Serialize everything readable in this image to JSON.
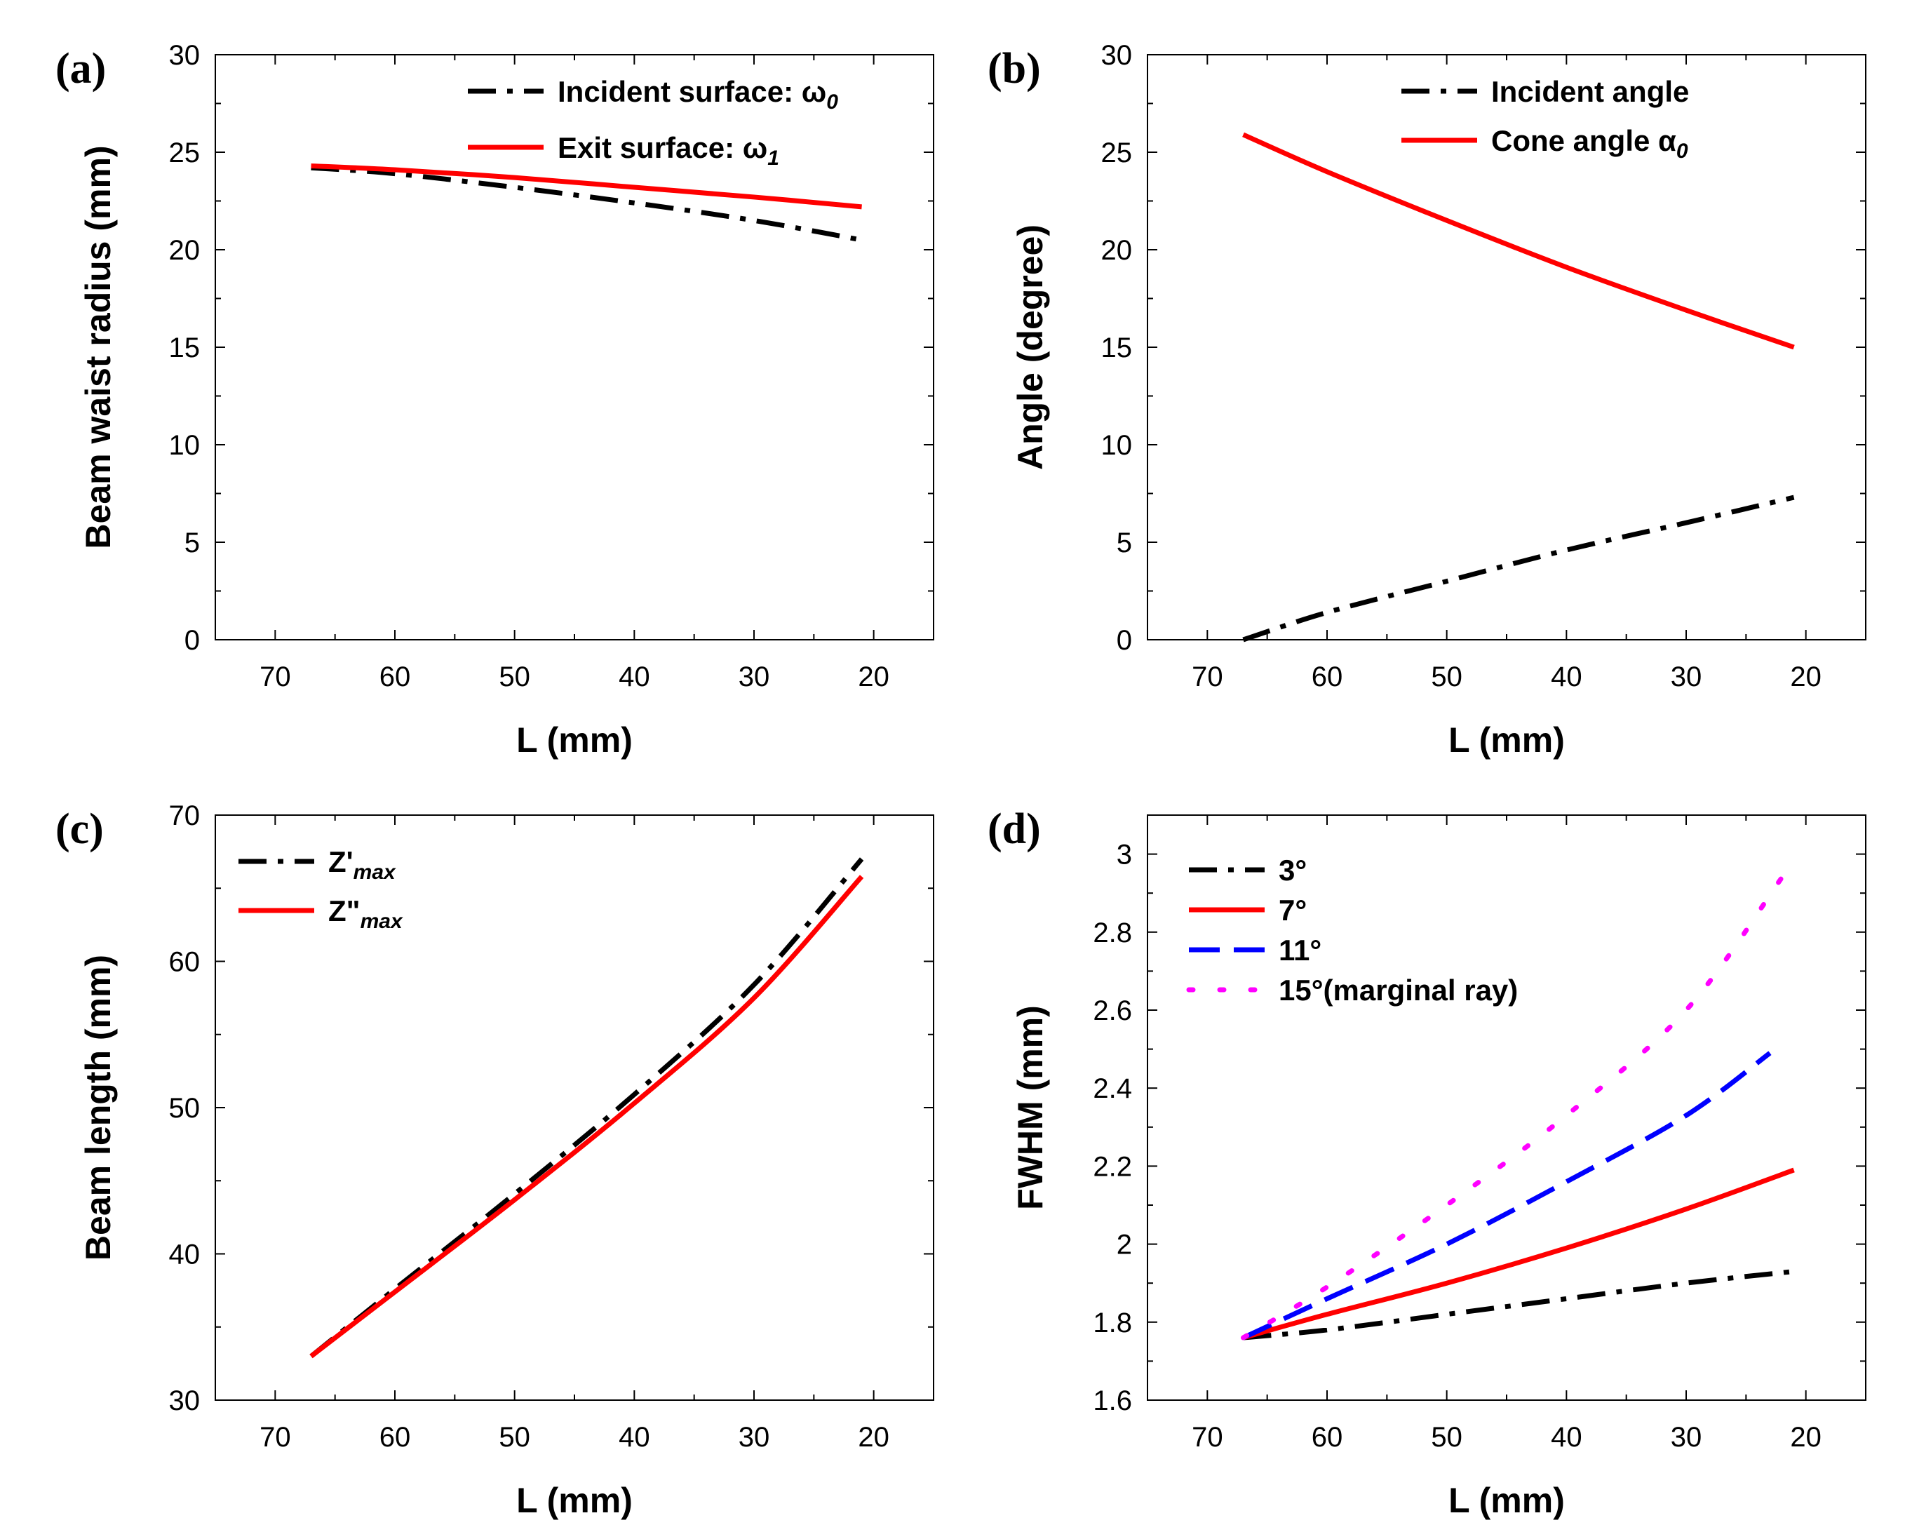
{
  "colors": {
    "black": "#000000",
    "red": "#ff0000",
    "blue": "#0000ff",
    "magenta": "#ff00ff"
  },
  "chart_data": [
    {
      "panel": "(a)",
      "type": "line",
      "xlabel": "L (mm)",
      "ylabel": "Beam waist radius (mm)",
      "xlim": [
        75,
        15
      ],
      "ylim": [
        0,
        30
      ],
      "xticks": [
        70,
        60,
        50,
        40,
        30,
        20
      ],
      "yticks": [
        0,
        5,
        10,
        15,
        20,
        25,
        30
      ],
      "legend_position": "top-right",
      "series": [
        {
          "name": "Incident surface: ω0",
          "legend_main": "Incident surface: ω",
          "legend_sub": "0",
          "style": "dashdot",
          "color": "#000000",
          "x": [
            67,
            60,
            50,
            40,
            30,
            21
          ],
          "y": [
            24.2,
            23.9,
            23.2,
            22.4,
            21.5,
            20.5
          ]
        },
        {
          "name": "Exit surface: ω1",
          "legend_main": "Exit surface: ω",
          "legend_sub": "1",
          "style": "solid",
          "color": "#ff0000",
          "x": [
            67,
            60,
            50,
            40,
            30,
            21
          ],
          "y": [
            24.3,
            24.1,
            23.7,
            23.2,
            22.7,
            22.2
          ]
        }
      ]
    },
    {
      "panel": "(b)",
      "type": "line",
      "xlabel": "L (mm)",
      "ylabel": "Angle (degree)",
      "xlim": [
        75,
        15
      ],
      "ylim": [
        0,
        30
      ],
      "xticks": [
        70,
        60,
        50,
        40,
        30,
        20
      ],
      "yticks": [
        0,
        5,
        10,
        15,
        20,
        25,
        30
      ],
      "legend_position": "top-right",
      "series": [
        {
          "name": "Incident angle",
          "legend_main": "Incident angle",
          "legend_sub": "",
          "style": "dashdot",
          "color": "#000000",
          "x": [
            67,
            60,
            50,
            40,
            30,
            21
          ],
          "y": [
            0,
            1.4,
            3.0,
            4.6,
            6.0,
            7.3
          ]
        },
        {
          "name": "Cone angle α0",
          "legend_main": "Cone angle α",
          "legend_sub": "0",
          "style": "solid",
          "color": "#ff0000",
          "x": [
            67,
            60,
            50,
            40,
            30,
            21
          ],
          "y": [
            25.9,
            24.0,
            21.5,
            19.1,
            16.9,
            15.0
          ]
        }
      ]
    },
    {
      "panel": "(c)",
      "type": "line",
      "xlabel": "L (mm)",
      "ylabel": "Beam length (mm)",
      "xlim": [
        75,
        15
      ],
      "ylim": [
        30,
        70
      ],
      "xticks": [
        70,
        60,
        50,
        40,
        30,
        20
      ],
      "yticks": [
        30,
        40,
        50,
        60,
        70
      ],
      "legend_position": "top-left",
      "series": [
        {
          "name": "Z'max",
          "legend_main": "Z'",
          "legend_sub": "max",
          "style": "dashdot",
          "color": "#000000",
          "x": [
            67,
            60,
            50,
            40,
            30,
            21
          ],
          "y": [
            33.0,
            37.6,
            44.1,
            50.9,
            58.4,
            67.0
          ]
        },
        {
          "name": "Z\"max",
          "legend_main": "Z\"",
          "legend_sub": "max",
          "style": "solid",
          "color": "#ff0000",
          "x": [
            67,
            60,
            50,
            40,
            30,
            21
          ],
          "y": [
            33.0,
            37.4,
            43.7,
            50.3,
            57.5,
            65.8
          ]
        }
      ]
    },
    {
      "panel": "(d)",
      "type": "line",
      "xlabel": "L (mm)",
      "ylabel": "FWHM (mm)",
      "xlim": [
        75,
        15
      ],
      "ylim": [
        1.6,
        3.1
      ],
      "xticks": [
        70,
        60,
        50,
        40,
        30,
        20
      ],
      "yticks": [
        1.6,
        1.8,
        2,
        2.2,
        2.4,
        2.6,
        2.8,
        3
      ],
      "ytick_labels": [
        "1.6",
        "1.8",
        "2",
        "2.2",
        "2.4",
        "2.6",
        "2.8",
        "3"
      ],
      "legend_position": "top-left",
      "series": [
        {
          "name": "3°",
          "legend_main": "3°",
          "legend_sub": "",
          "style": "dashdot",
          "color": "#000000",
          "x": [
            67,
            60,
            50,
            40,
            30,
            21
          ],
          "y": [
            1.76,
            1.78,
            1.82,
            1.86,
            1.9,
            1.93
          ]
        },
        {
          "name": "7°",
          "legend_main": "7°",
          "legend_sub": "",
          "style": "solid",
          "color": "#ff0000",
          "x": [
            67,
            60,
            50,
            40,
            30,
            21
          ],
          "y": [
            1.76,
            1.82,
            1.9,
            1.99,
            2.09,
            2.19
          ]
        },
        {
          "name": "11°",
          "legend_main": "11°",
          "legend_sub": "",
          "style": "dash",
          "color": "#0000ff",
          "x": [
            67,
            60,
            50,
            40,
            30,
            23
          ],
          "y": [
            1.76,
            1.86,
            2.0,
            2.16,
            2.33,
            2.49
          ]
        },
        {
          "name": "15°(marginal ray)",
          "legend_main": "15°(marginal ray)",
          "legend_sub": "",
          "style": "dot",
          "color": "#ff00ff",
          "x": [
            67,
            60,
            50,
            40,
            30,
            22
          ],
          "y": [
            1.76,
            1.89,
            2.1,
            2.33,
            2.6,
            2.94
          ]
        }
      ]
    }
  ]
}
